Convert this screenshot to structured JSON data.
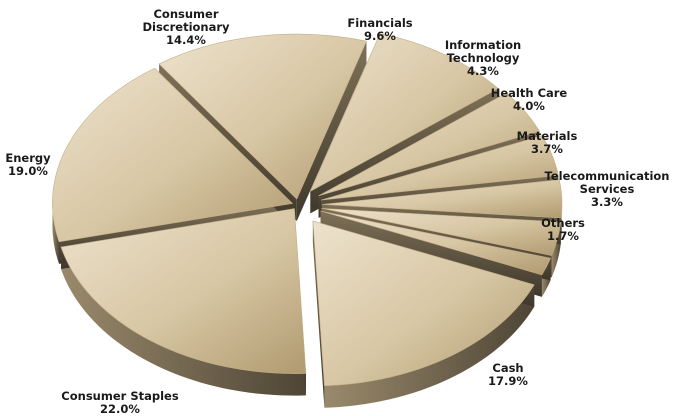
{
  "chart_data": {
    "type": "pie",
    "title": "",
    "slices": [
      {
        "label": "Consumer Discretionary",
        "label_lines": [
          "Consumer",
          "Discretionary"
        ],
        "value": 14.4,
        "value_label": "14.4%"
      },
      {
        "label": "Financials",
        "label_lines": [
          "Financials"
        ],
        "value": 9.6,
        "value_label": "9.6%"
      },
      {
        "label": "Information Technology",
        "label_lines": [
          "Information",
          "Technology"
        ],
        "value": 4.3,
        "value_label": "4.3%"
      },
      {
        "label": "Health Care",
        "label_lines": [
          "Health Care"
        ],
        "value": 4.0,
        "value_label": "4.0%"
      },
      {
        "label": "Materials",
        "label_lines": [
          "Materials"
        ],
        "value": 3.7,
        "value_label": "3.7%"
      },
      {
        "label": "Telecommunication Services",
        "label_lines": [
          "Telecommunication",
          "Services"
        ],
        "value": 3.3,
        "value_label": "3.3%"
      },
      {
        "label": "Others",
        "label_lines": [
          "Others"
        ],
        "value": 1.7,
        "value_label": "1.7%"
      },
      {
        "label": "Cash",
        "label_lines": [
          "Cash"
        ],
        "value": 17.9,
        "value_label": "17.9%"
      },
      {
        "label": "Consumer Staples",
        "label_lines": [
          "Consumer Staples"
        ],
        "value": 22.0,
        "value_label": "22.0%"
      },
      {
        "label": "Energy",
        "label_lines": [
          "Energy"
        ],
        "value": 19.0,
        "value_label": "19.0%"
      }
    ],
    "style": "3d-exploded",
    "colors": {
      "top_light": "#ede2cd",
      "top_mid": "#d7c6a3",
      "top_dark": "#b09a70",
      "side_light": "#9a8a6c",
      "side_dark": "#4e4535"
    }
  }
}
